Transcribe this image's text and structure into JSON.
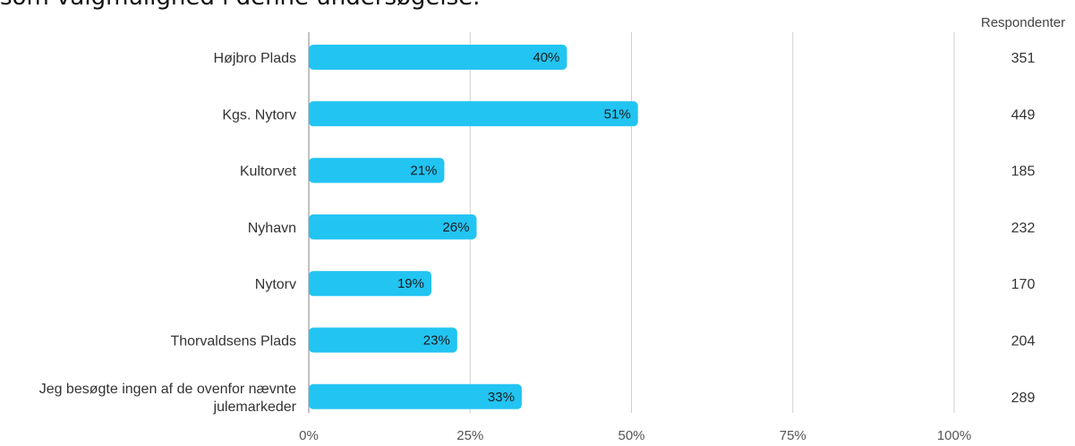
{
  "heading": "som valgmulighed i denne undersøgelse.",
  "colors": {
    "bar": "#22c4f2",
    "grid": "#cfcfcf",
    "axis": "#9a9a9a"
  },
  "chart_data": {
    "type": "bar",
    "orientation": "horizontal",
    "categories": [
      "Højbro Plads",
      "Kgs. Nytorv",
      "Kultorvet",
      "Nyhavn",
      "Nytorv",
      "Thorvaldsens Plads",
      [
        "Jeg besøgte ingen af de ovenfor nævnte",
        "julemarkeder"
      ]
    ],
    "values": [
      40,
      51,
      21,
      26,
      19,
      23,
      33
    ],
    "value_labels": [
      "40%",
      "51%",
      "21%",
      "26%",
      "19%",
      "23%",
      "33%"
    ],
    "respondents_header": "Respondenter",
    "respondents": [
      "351",
      "449",
      "185",
      "232",
      "170",
      "204",
      "289"
    ],
    "xlim": [
      0,
      100
    ],
    "xticks": [
      0,
      25,
      50,
      75,
      100
    ],
    "xtick_labels": [
      "0%",
      "25%",
      "50%",
      "75%",
      "100%"
    ],
    "grid": true
  }
}
